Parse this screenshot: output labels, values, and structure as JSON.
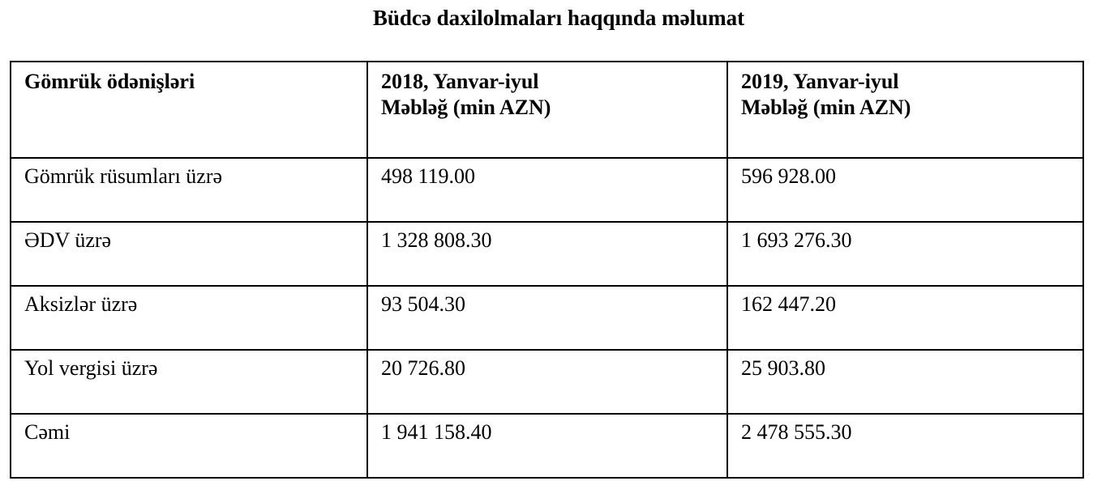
{
  "title": "Büdcə daxilolmaları haqqında məlumat",
  "table": {
    "headers": [
      {
        "line1": "Gömrük ödənişləri",
        "line2": ""
      },
      {
        "line1": "2018, Yanvar-iyul",
        "line2": "Məbləğ (min AZN)"
      },
      {
        "line1": "2019, Yanvar-iyul",
        "line2": "Məbləğ (min AZN)"
      }
    ],
    "rows": [
      [
        "Gömrük rüsumları üzrə",
        "498 119.00",
        "596 928.00"
      ],
      [
        "ƏDV üzrə",
        "1 328 808.30",
        "1 693 276.30"
      ],
      [
        "Aksizlər üzrə",
        "93 504.30",
        "162 447.20"
      ],
      [
        "Yol vergisi üzrə",
        "20 726.80",
        "25 903.80"
      ],
      [
        "Cəmi",
        "1 941 158.40",
        "2 478 555.30"
      ]
    ]
  }
}
